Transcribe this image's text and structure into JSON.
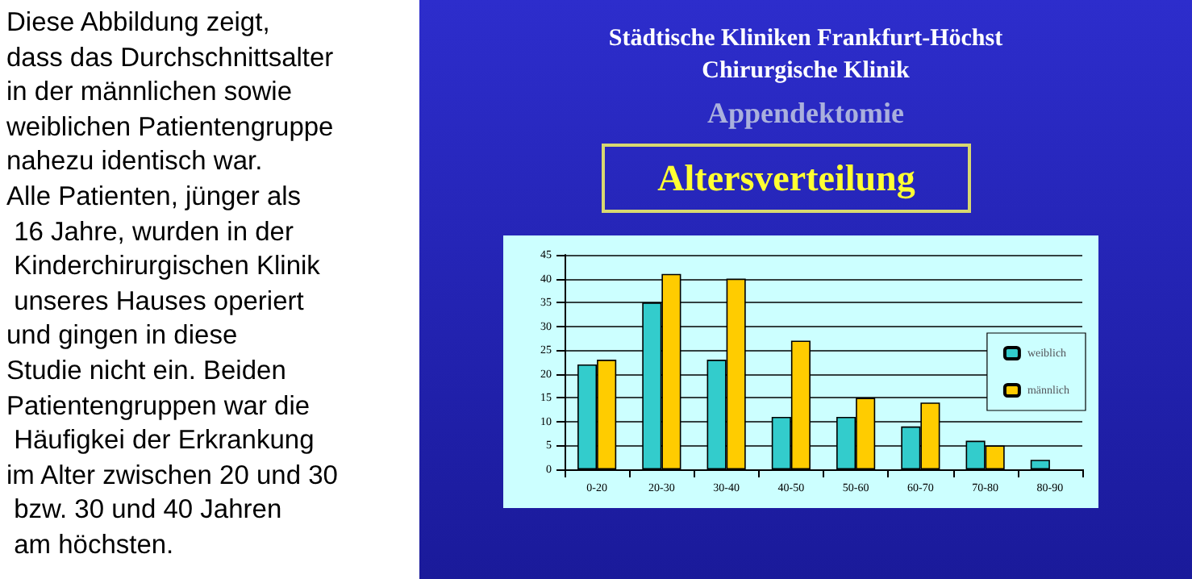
{
  "chart_data": {
    "type": "bar",
    "title": "Altersverteilung",
    "subtitle": "Städtische Kliniken Frankfurt-Höchst\nChirurgische Klinik",
    "annotations": [
      "Appendektomie",
      "Diese Abbildung zeigt,\ndass das Durchschnittsalter\nin der männlichen sowie\nweiblichen Patientengruppe\nnahezu identisch war.\nAlle Patienten, jünger als\n 16 Jahre, wurden in der\n Kinderchirurgischen Klinik\n unseres Hauses operiert\nund gingen in diese\nStudie nicht ein. Beiden\nPatientengruppen war die\n Häufigkei der Erkrankung\nim Alter zwischen 20 und 30\n bzw. 30 und 40 Jahren\n am höchsten."
    ],
    "categories": [
      "0-20",
      "20-30",
      "30-40",
      "40-50",
      "50-60",
      "60-70",
      "70-80",
      "80-90"
    ],
    "series": [
      {
        "name": "weiblich",
        "color": "#33cccc",
        "values": [
          22,
          35,
          23,
          11,
          11,
          9,
          6,
          2
        ]
      },
      {
        "name": "männlich",
        "color": "#ffcc00",
        "values": [
          23,
          41,
          40,
          27,
          15,
          14,
          5,
          null
        ]
      }
    ],
    "ylim": [
      0,
      45
    ],
    "yticks": [
      0,
      5,
      10,
      15,
      20,
      25,
      30,
      35,
      40,
      45
    ],
    "grid": "y",
    "legend": "right"
  }
}
